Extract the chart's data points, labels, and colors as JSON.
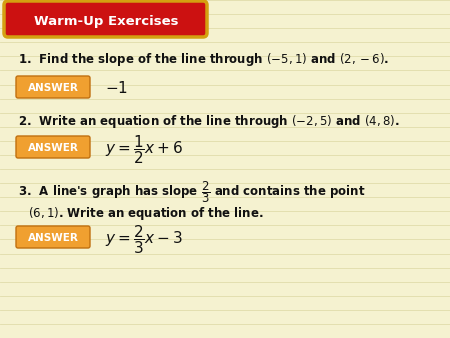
{
  "bg_color": "#f5f2d0",
  "bg_lines_color": "#e0dcaa",
  "header_bg": "#cc1111",
  "header_border": "#d4a010",
  "header_text": "Warm-Up Exercises",
  "header_text_color": "#ffffff",
  "answer_box_color": "#f0a030",
  "answer_box_edge": "#c07010",
  "answer_text_color": "#ffffff",
  "body_text_color": "#111111",
  "q1_text": "1.  Find the slope of the line through $(-5, 1)$ and $(2, -6)$.",
  "q1_answer": "$-1$",
  "q2_text": "2.  Write an equation of the line through $(-2, 5)$ and $(4, 8)$.",
  "q2_answer": "$y = \\dfrac{1}{2}x + 6$",
  "q3_text_a": "3.  A line's graph has slope $\\dfrac{2}{3}$ and contains the point",
  "q3_text_b": "$(6, 1)$. Write an equation of the line.",
  "q3_answer": "$y = \\dfrac{2}{3}x - 3$",
  "figsize": [
    4.5,
    3.38
  ],
  "dpi": 100
}
